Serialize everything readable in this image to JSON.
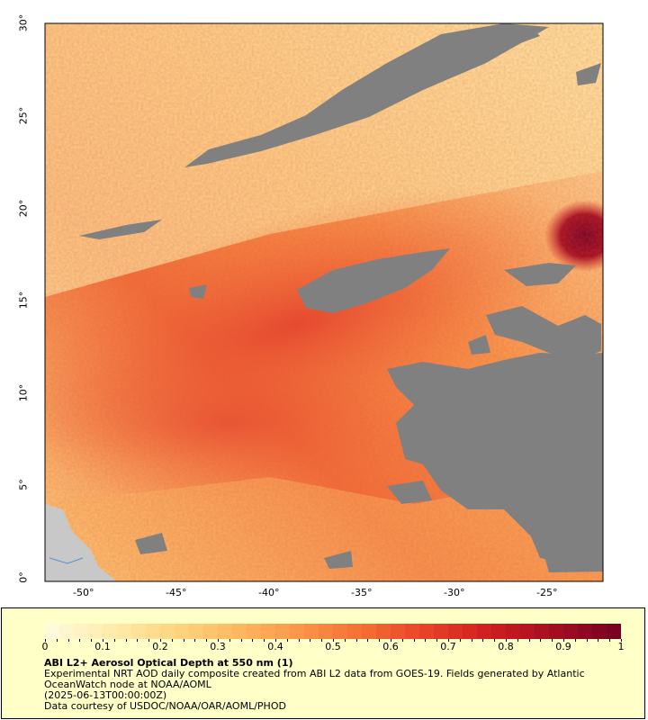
{
  "map": {
    "y_ticks": [
      "30°",
      "25°",
      "20°",
      "15°",
      "10°",
      "5°",
      "0°"
    ],
    "x_ticks": [
      "-50°",
      "-45°",
      "-40°",
      "-35°",
      "-30°",
      "-25°"
    ],
    "no_data_color": "#808080",
    "land_color": "#c8c8c8"
  },
  "legend": {
    "scale_ticks": [
      "0",
      "0.1",
      "0.2",
      "0.3",
      "0.4",
      "0.5",
      "0.6",
      "0.7",
      "0.8",
      "0.9",
      "1"
    ],
    "colors": [
      "#fffadc",
      "#ffeaaa",
      "#ffd580",
      "#fdb75f",
      "#fb9446",
      "#f46d34",
      "#e84128",
      "#cf1d20",
      "#a50f20",
      "#7a0222"
    ],
    "title": "ABI L2+ Aerosol Optical Depth at 550 nm (1)",
    "line1": "Experimental NRT AOD daily composite created from ABI L2 data from GOES-19. Fields generated by Atlantic OceanWatch node at NOAA/AOML",
    "date": "(2025-06-13T00:00:00Z)",
    "credit": "Data courtesy of USDOC/NOAA/OAR/AOML/PHOD"
  }
}
